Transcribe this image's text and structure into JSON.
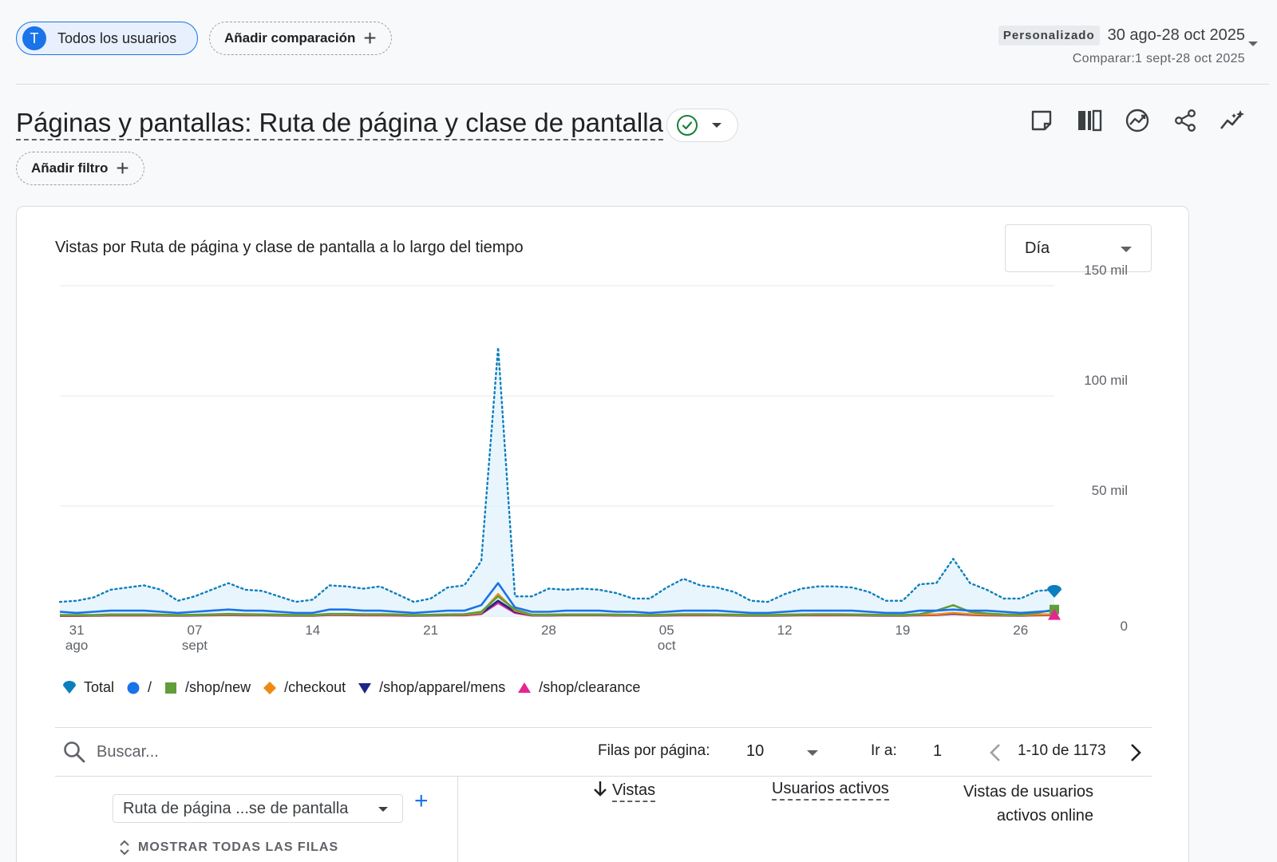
{
  "topbar": {
    "segment_initial": "T",
    "segment_label": "Todos los usuarios",
    "add_comparison_label": "Añadir comparación",
    "date_badge": "Personalizado",
    "date_range": "30 ago-28 oct 2025",
    "date_compare": "Comparar:1 sept-28 oct 2025"
  },
  "page": {
    "title": "Páginas y pantallas: Ruta de página y clase de pantalla",
    "add_filter_label": "Añadir filtro"
  },
  "toolbar": {
    "icons": [
      "note-icon",
      "compare-columns-icon",
      "insights-icon",
      "share-icon",
      "trend-sparkle-icon"
    ]
  },
  "chart_card": {
    "title": "Vistas por Ruta de página y clase de pantalla a lo largo del tiempo",
    "granularity": "Día"
  },
  "chart_data": {
    "type": "line",
    "y_ticks": [
      "150 mil",
      "100 mil",
      "50 mil",
      "0"
    ],
    "ylim": [
      0,
      150000
    ],
    "x_ticks": [
      {
        "day": "31",
        "month": "ago",
        "index": 1
      },
      {
        "day": "07",
        "month": "sept",
        "index": 8
      },
      {
        "day": "14",
        "month": "",
        "index": 15
      },
      {
        "day": "21",
        "month": "",
        "index": 22
      },
      {
        "day": "28",
        "month": "",
        "index": 29
      },
      {
        "day": "05",
        "month": "oct",
        "index": 36
      },
      {
        "day": "12",
        "month": "",
        "index": 43
      },
      {
        "day": "19",
        "month": "",
        "index": 50
      },
      {
        "day": "26",
        "month": "",
        "index": 57
      }
    ],
    "series": [
      {
        "name": "Total",
        "color": "#0b7fbe",
        "values": [
          6500,
          7000,
          8500,
          12000,
          13000,
          14000,
          12000,
          7000,
          9000,
          12000,
          15000,
          12000,
          11500,
          9000,
          6500,
          7500,
          14000,
          13500,
          12500,
          13500,
          10000,
          6500,
          8000,
          13000,
          14000,
          25000,
          122000,
          9000,
          9000,
          12500,
          12000,
          12500,
          12000,
          10500,
          8000,
          8000,
          13000,
          17000,
          14000,
          13000,
          11000,
          7000,
          6500,
          10000,
          12500,
          13500,
          13500,
          13000,
          11000,
          7000,
          7000,
          14500,
          15000,
          26000,
          15000,
          12000,
          8000,
          8000,
          11500,
          12000
        ]
      },
      {
        "name": "/",
        "color": "#1a73e8",
        "values": [
          2000,
          1500,
          2000,
          2500,
          2500,
          2500,
          2000,
          1500,
          2000,
          2500,
          3000,
          2500,
          2500,
          2000,
          1500,
          1500,
          3000,
          3000,
          2500,
          2500,
          2000,
          1500,
          2000,
          2500,
          2500,
          5000,
          15000,
          4000,
          2000,
          2000,
          2500,
          2500,
          2500,
          2000,
          2000,
          1500,
          2000,
          2500,
          2500,
          2500,
          2000,
          1500,
          1500,
          2000,
          2500,
          2500,
          2500,
          2500,
          2000,
          1500,
          1500,
          2500,
          2500,
          3000,
          2500,
          2500,
          2000,
          1500,
          2000,
          2500
        ]
      },
      {
        "name": "/shop/new",
        "color": "#5f9e3b",
        "values": [
          500,
          500,
          500,
          800,
          800,
          800,
          700,
          500,
          600,
          800,
          1000,
          900,
          800,
          700,
          500,
          500,
          1000,
          1000,
          900,
          900,
          800,
          500,
          600,
          800,
          900,
          2000,
          9000,
          3000,
          700,
          700,
          800,
          800,
          800,
          700,
          600,
          500,
          700,
          900,
          900,
          800,
          700,
          500,
          500,
          700,
          800,
          900,
          900,
          800,
          700,
          500,
          500,
          900,
          2500,
          5000,
          2000,
          1200,
          800,
          600,
          1500,
          3000
        ]
      },
      {
        "name": "/checkout",
        "color": "#ee8a14",
        "values": [
          400,
          400,
          400,
          600,
          600,
          600,
          500,
          400,
          500,
          600,
          800,
          700,
          600,
          500,
          400,
          400,
          800,
          800,
          700,
          700,
          600,
          400,
          500,
          600,
          700,
          1500,
          10000,
          2500,
          500,
          500,
          600,
          600,
          600,
          500,
          500,
          400,
          500,
          700,
          700,
          600,
          500,
          400,
          400,
          500,
          600,
          700,
          700,
          600,
          500,
          400,
          400,
          700,
          800,
          1500,
          900,
          700,
          500,
          400,
          700,
          800
        ]
      },
      {
        "name": "/shop/apparel/mens",
        "color": "#1d2785",
        "values": [
          300,
          300,
          300,
          500,
          500,
          500,
          400,
          300,
          400,
          500,
          700,
          600,
          500,
          400,
          300,
          300,
          700,
          700,
          600,
          600,
          500,
          300,
          400,
          500,
          600,
          1200,
          7000,
          2000,
          400,
          400,
          500,
          500,
          500,
          400,
          400,
          300,
          400,
          600,
          600,
          500,
          400,
          300,
          300,
          400,
          500,
          600,
          600,
          500,
          400,
          300,
          300,
          600,
          700,
          1200,
          800,
          600,
          400,
          300,
          600,
          700
        ]
      },
      {
        "name": "/shop/clearance",
        "color": "#e52592",
        "values": [
          100,
          100,
          200,
          300,
          300,
          300,
          300,
          200,
          300,
          400,
          500,
          400,
          400,
          300,
          200,
          200,
          500,
          500,
          400,
          400,
          300,
          200,
          300,
          400,
          400,
          1000,
          6000,
          1500,
          300,
          300,
          400,
          400,
          400,
          300,
          300,
          200,
          300,
          400,
          400,
          400,
          300,
          200,
          200,
          300,
          400,
          400,
          400,
          400,
          300,
          200,
          200,
          400,
          500,
          1000,
          600,
          400,
          300,
          200,
          400,
          500
        ]
      }
    ],
    "legend": [
      "Total",
      "/",
      "/shop/new",
      "/checkout",
      "/shop/apparel/mens",
      "/shop/clearance"
    ]
  },
  "table": {
    "search_placeholder": "Buscar...",
    "rows_per_page_label": "Filas por página:",
    "rows_per_page_value": "10",
    "goto_label": "Ir a:",
    "goto_value": "1",
    "page_info": "1-10 de 1173",
    "dimension_label": "Ruta de página ...se de pantalla",
    "show_all_rows": "MOSTRAR TODAS LAS FILAS",
    "col_views": "Vistas",
    "col_active_users": "Usuarios activos",
    "col_views_per_user_1": "Vistas de usuarios",
    "col_views_per_user_2": "activos online"
  }
}
